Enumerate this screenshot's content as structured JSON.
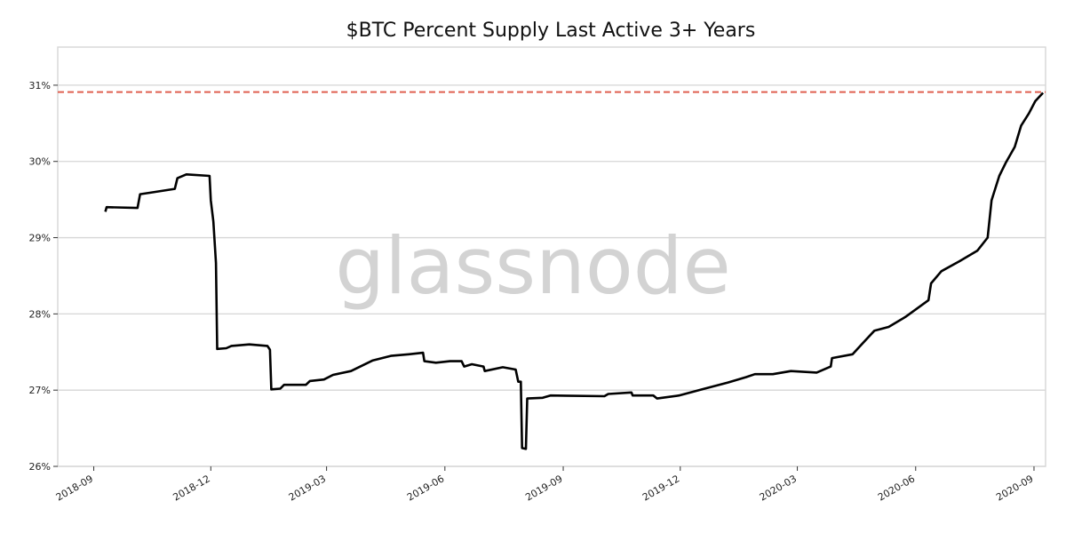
{
  "chart_data": {
    "type": "line",
    "title": "$BTC Percent Supply Last Active 3+ Years",
    "watermark": "glassnode",
    "xlabel": "",
    "ylabel": "",
    "xlim": [
      "2018-08-04",
      "2020-09-10"
    ],
    "ylim": [
      26,
      31.5
    ],
    "grid": "horizontal",
    "x_ticks": [
      "2018-09",
      "2018-12",
      "2019-03",
      "2019-06",
      "2019-09",
      "2019-12",
      "2020-03",
      "2020-06",
      "2020-09"
    ],
    "y_ticks": [
      "26%",
      "27%",
      "28%",
      "29%",
      "30%",
      "31%"
    ],
    "y_tick_values": [
      26,
      27,
      28,
      29,
      30,
      31
    ],
    "reference_line": {
      "value": 30.91,
      "color": "#e06050",
      "style": "dashed"
    },
    "series": [
      {
        "color": "#000000",
        "x": [
          "2018-09-10",
          "2018-09-11",
          "2018-10-05",
          "2018-10-07",
          "2018-10-15",
          "2018-11-03",
          "2018-11-05",
          "2018-11-12",
          "2018-11-30",
          "2018-12-01",
          "2018-12-03",
          "2018-12-05",
          "2018-12-06",
          "2018-12-13",
          "2018-12-17",
          "2018-12-31",
          "2019-01-14",
          "2019-01-16",
          "2019-01-17",
          "2019-01-24",
          "2019-01-27",
          "2019-02-13",
          "2019-02-16",
          "2019-02-27",
          "2019-03-06",
          "2019-03-20",
          "2019-04-06",
          "2019-04-20",
          "2019-05-04",
          "2019-05-15",
          "2019-05-16",
          "2019-05-25",
          "2019-06-05",
          "2019-06-14",
          "2019-06-16",
          "2019-06-22",
          "2019-07-01",
          "2019-07-02",
          "2019-07-16",
          "2019-07-26",
          "2019-07-28",
          "2019-07-30",
          "2019-07-31",
          "2019-08-03",
          "2019-08-04",
          "2019-08-16",
          "2019-08-22",
          "2019-10-03",
          "2019-10-06",
          "2019-10-24",
          "2019-10-25",
          "2019-11-10",
          "2019-11-13",
          "2019-11-30",
          "2019-12-18",
          "2020-01-07",
          "2020-01-21",
          "2020-01-28",
          "2020-02-11",
          "2020-02-25",
          "2020-03-16",
          "2020-03-27",
          "2020-03-28",
          "2020-04-13",
          "2020-04-20",
          "2020-04-30",
          "2020-05-11",
          "2020-05-24",
          "2020-06-11",
          "2020-06-13",
          "2020-06-21",
          "2020-07-05",
          "2020-07-19",
          "2020-07-27",
          "2020-07-30",
          "2020-08-05",
          "2020-08-10",
          "2020-08-17",
          "2020-08-22",
          "2020-08-28",
          "2020-09-02",
          "2020-09-08"
        ],
        "y": [
          29.34,
          29.4,
          29.39,
          29.57,
          29.59,
          29.64,
          29.78,
          29.83,
          29.81,
          29.49,
          29.21,
          28.67,
          27.54,
          27.55,
          27.58,
          27.6,
          27.58,
          27.53,
          27.01,
          27.02,
          27.07,
          27.07,
          27.12,
          27.14,
          27.2,
          27.25,
          27.39,
          27.45,
          27.47,
          27.49,
          27.38,
          27.36,
          27.38,
          27.38,
          27.31,
          27.34,
          27.31,
          27.25,
          27.3,
          27.27,
          27.11,
          27.11,
          26.24,
          26.23,
          26.89,
          26.9,
          26.93,
          26.92,
          26.95,
          26.97,
          26.93,
          26.93,
          26.89,
          26.93,
          27.01,
          27.1,
          27.17,
          27.21,
          27.21,
          27.25,
          27.23,
          27.31,
          27.42,
          27.47,
          27.6,
          27.78,
          27.83,
          27.96,
          28.18,
          28.4,
          28.56,
          28.69,
          28.83,
          29.0,
          29.49,
          29.81,
          29.98,
          30.19,
          30.47,
          30.63,
          30.79,
          30.9
        ]
      }
    ]
  }
}
